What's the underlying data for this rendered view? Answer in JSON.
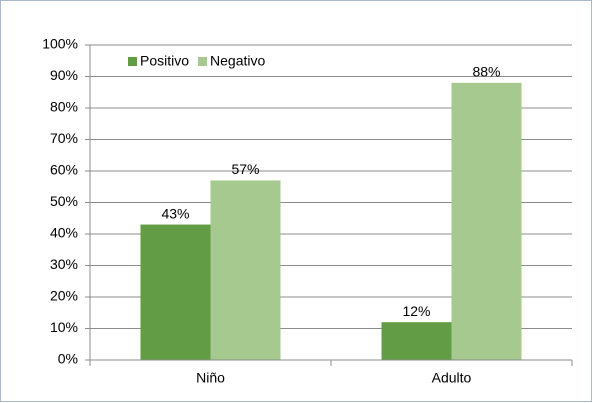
{
  "chart_data": {
    "type": "bar",
    "categories": [
      "Niño",
      "Adulto"
    ],
    "series": [
      {
        "name": "Positivo",
        "color": "#629c44",
        "values": [
          43,
          12
        ],
        "value_labels": [
          "43%",
          "12%"
        ]
      },
      {
        "name": "Negativo",
        "color": "#a5c98e",
        "values": [
          57,
          88
        ],
        "value_labels": [
          "57%",
          "88%"
        ]
      }
    ],
    "ylim": [
      0,
      100
    ],
    "yticks": [
      {
        "value": 0,
        "label": "0%"
      },
      {
        "value": 10,
        "label": "10%"
      },
      {
        "value": 20,
        "label": "20%"
      },
      {
        "value": 30,
        "label": "30%"
      },
      {
        "value": 40,
        "label": "40%"
      },
      {
        "value": 50,
        "label": "50%"
      },
      {
        "value": 60,
        "label": "60%"
      },
      {
        "value": 70,
        "label": "70%"
      },
      {
        "value": 80,
        "label": "80%"
      },
      {
        "value": 90,
        "label": "90%"
      },
      {
        "value": 100,
        "label": "100%"
      }
    ],
    "grid": true,
    "legend": "top-left"
  }
}
